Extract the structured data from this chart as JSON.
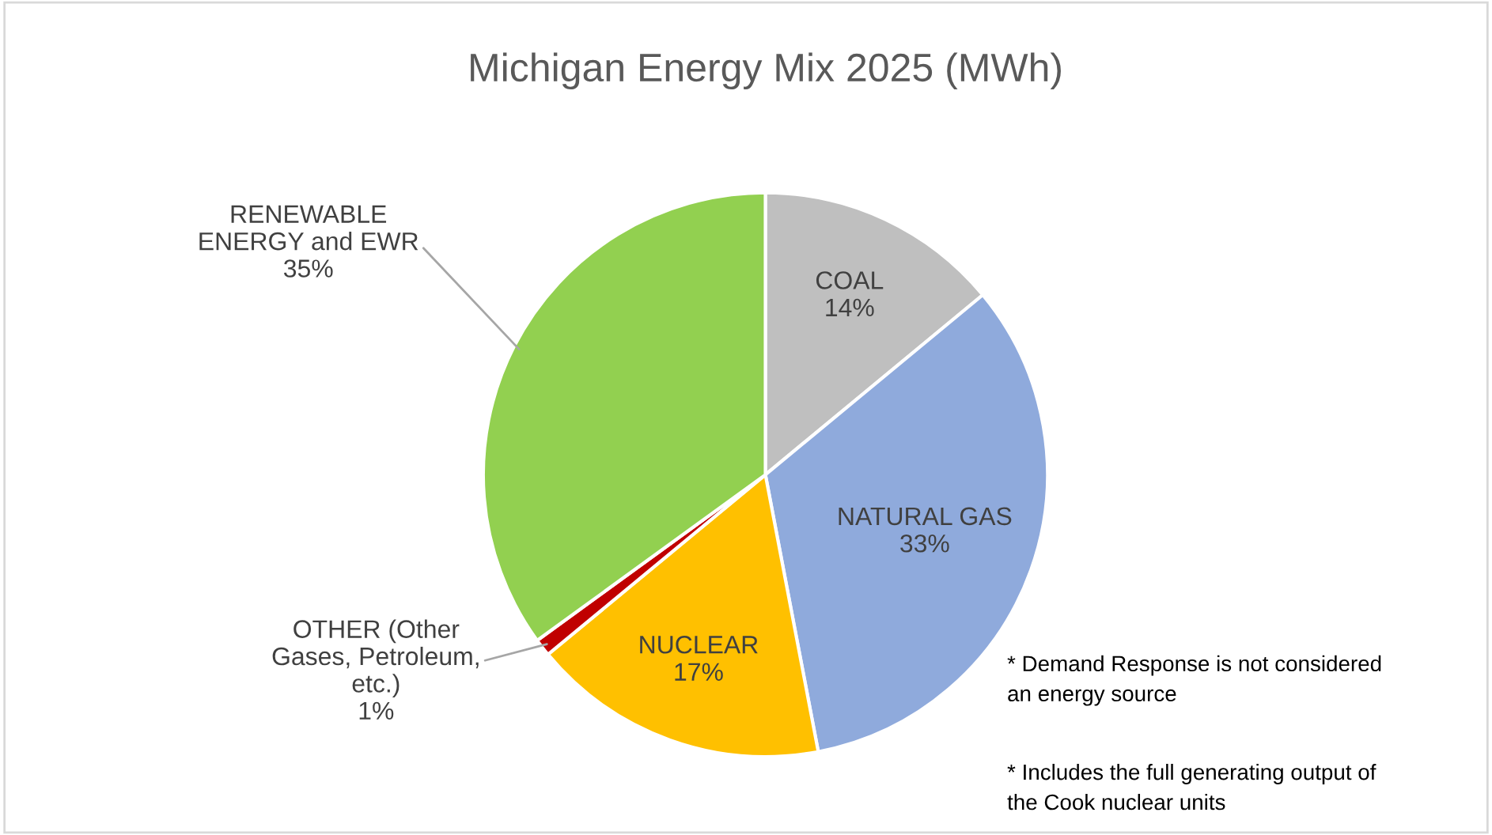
{
  "chart_data": {
    "type": "pie",
    "title": "Michigan Energy Mix 2025 (MWh)",
    "categories": [
      "COAL",
      "NATURAL GAS",
      "NUCLEAR",
      "OTHER (Other\nGases, Petroleum,\netc.)",
      "RENEWABLE\nENERGY and EWR"
    ],
    "values": [
      14,
      33,
      17,
      1,
      35
    ],
    "value_labels": [
      "14%",
      "33%",
      "17%",
      "1%",
      "35%"
    ],
    "colors": [
      "#bfbfbf",
      "#8faadc",
      "#ffc000",
      "#c00000",
      "#92d050"
    ],
    "legend": false,
    "annotations": [
      "* Demand Response is not considered\nan energy source",
      "* Includes the full generating output of\nthe Cook nuclear units"
    ]
  }
}
